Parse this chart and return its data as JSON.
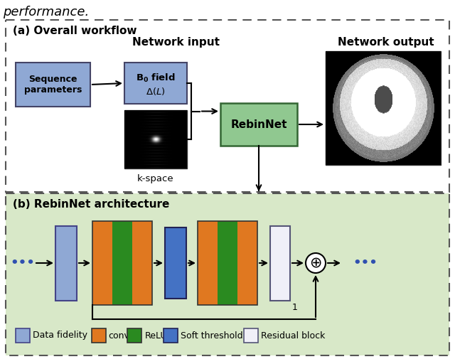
{
  "title_text": "performance.",
  "panel_a_title": "(a) Overall workflow",
  "panel_b_title": "(b) RebinNet architecture",
  "network_input_label": "Network input",
  "network_output_label": "Network output",
  "seq_params_label": "Sequence\nparameters",
  "b0_field_label": "B$_0$ field\n$\\Delta(L)$",
  "kspace_label": "k-space",
  "rebinnet_label": "RebinNet",
  "legend_items": [
    "Data fidelity",
    "conv",
    "ReLU",
    "Soft threshold",
    "Residual block"
  ],
  "color_data_fidelity": "#8fa8d4",
  "color_conv": "#e07820",
  "color_relu": "#2a8a20",
  "color_soft": "#4472c4",
  "color_residual": "#f0f0f8",
  "color_rebinnet": "#90c890",
  "color_seq_params": "#8fa8d4",
  "color_b0_field": "#8fa8d4",
  "panel_b_bg": "#d8e8c8",
  "dots_color": "#3050b0"
}
